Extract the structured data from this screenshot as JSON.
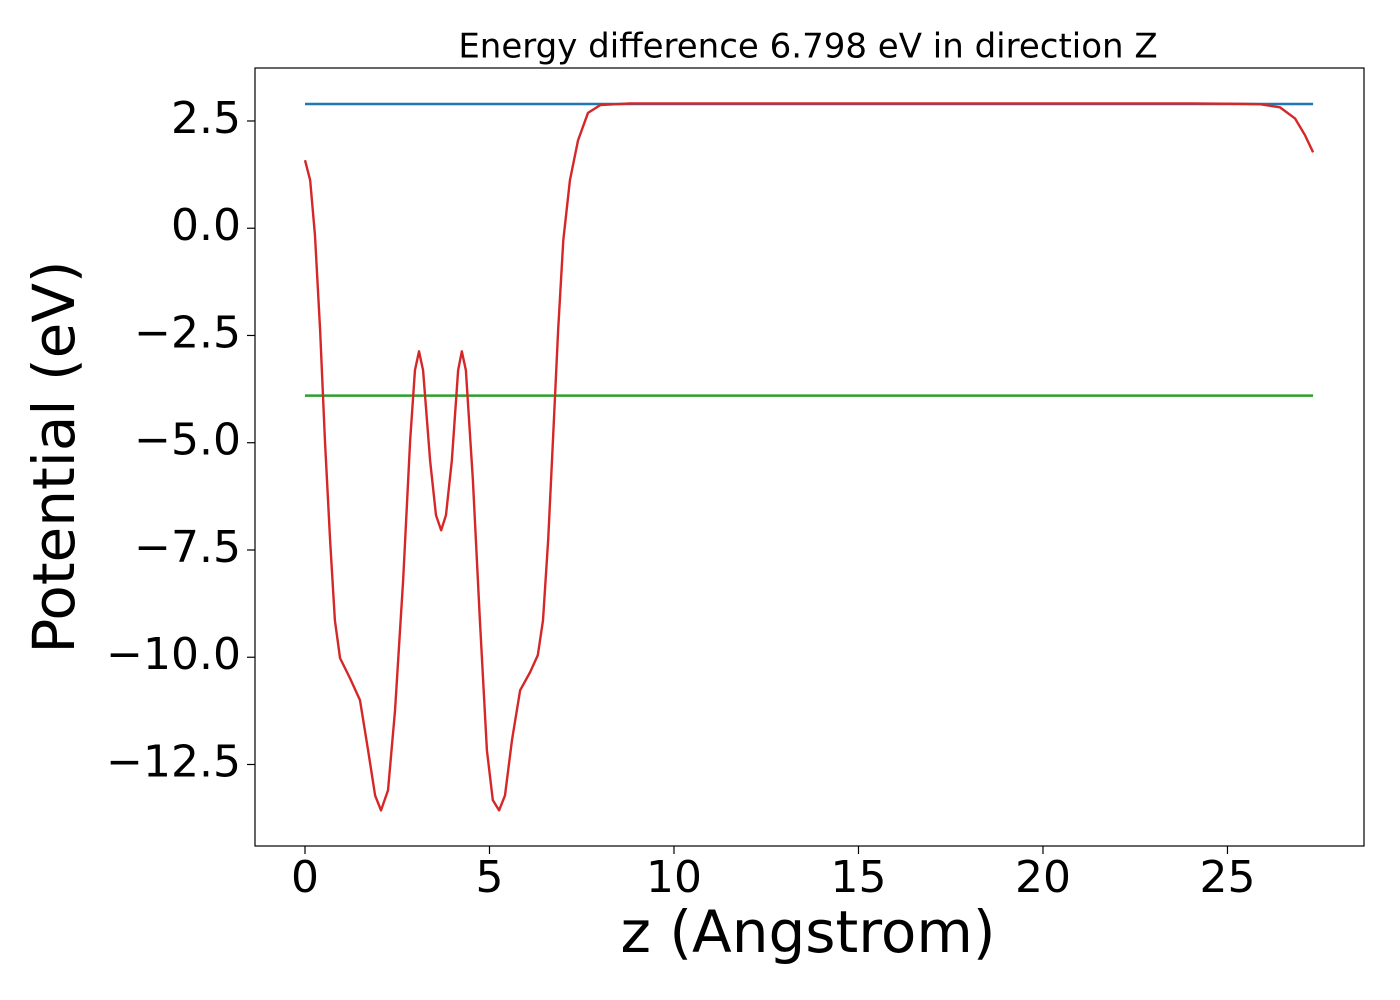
{
  "chart_data": {
    "type": "line",
    "title": "Energy difference 6.798 eV in direction Z",
    "xlabel": "z (Angstrom)",
    "ylabel": "Potential (eV)",
    "xlim": [
      -1.355,
      28.7
    ],
    "ylim": [
      -14.4,
      3.735
    ],
    "xticks": [
      0,
      5,
      10,
      15,
      20,
      25
    ],
    "yticks": [
      2.5,
      {
        "value": 0,
        "label": "0.0"
      },
      {
        "value": -2.5,
        "label": "−2.5"
      },
      {
        "value": -5,
        "label": "−5.0"
      },
      {
        "value": -7.5,
        "label": "−7.5"
      },
      {
        "value": -10,
        "label": "−10.0"
      },
      {
        "value": -12.5,
        "label": "−12.5"
      }
    ],
    "grid": false,
    "series": [
      {
        "color": "#1f77b4",
        "x": [
          0,
          27.32
        ],
        "values": [
          2.896,
          2.896
        ]
      },
      {
        "color": "#2ca02c",
        "x": [
          0,
          27.32
        ],
        "values": [
          -3.902,
          -3.902
        ]
      },
      {
        "color": "#d62728",
        "x": [
          0,
          0.14,
          0.27,
          0.41,
          0.54,
          0.68,
          0.81,
          0.95,
          1.22,
          1.49,
          1.71,
          1.9,
          2.06,
          2.25,
          2.44,
          2.66,
          2.85,
          2.98,
          3.09,
          3.2,
          3.39,
          3.55,
          3.69,
          3.82,
          3.98,
          4.15,
          4.25,
          4.36,
          4.55,
          4.74,
          4.93,
          5.09,
          5.26,
          5.42,
          5.61,
          5.83,
          6.1,
          6.31,
          6.45,
          6.59,
          6.72,
          6.86,
          7.0,
          7.18,
          7.4,
          7.67,
          8.0,
          8.8,
          12,
          16,
          20,
          24,
          25.3,
          25.88,
          26.42,
          26.83,
          27.1,
          27.32
        ],
        "values": [
          1.585,
          1.12,
          -0.16,
          -2.38,
          -4.94,
          -7.27,
          -9.14,
          -10.02,
          -10.49,
          -11.0,
          -12.17,
          -13.22,
          -13.57,
          -13.1,
          -11.24,
          -8.2,
          -4.94,
          -3.31,
          -2.87,
          -3.31,
          -5.41,
          -6.69,
          -7.04,
          -6.69,
          -5.41,
          -3.31,
          -2.87,
          -3.31,
          -5.87,
          -9.14,
          -12.17,
          -13.33,
          -13.57,
          -13.22,
          -11.93,
          -10.77,
          -10.35,
          -9.95,
          -9.14,
          -7.27,
          -4.94,
          -2.38,
          -0.28,
          1.12,
          2.05,
          2.69,
          2.87,
          2.91,
          2.91,
          2.91,
          2.91,
          2.91,
          2.9,
          2.89,
          2.82,
          2.56,
          2.17,
          1.77
        ]
      }
    ]
  }
}
